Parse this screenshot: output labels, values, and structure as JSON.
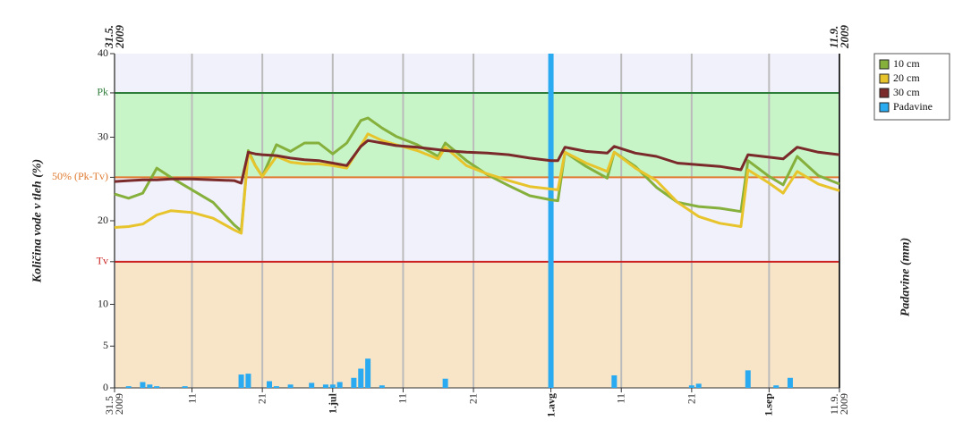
{
  "chart_data": {
    "type": "line",
    "ylabel": "Količina vode v tleh (%)",
    "y2label": "Padavine (mm)",
    "top_labels": [
      "31.5.\n2009",
      "11.9.\n2009"
    ],
    "xlim": [
      "2009-05-31",
      "2009-09-11"
    ],
    "xticks": [
      {
        "value": "2009-05-31",
        "label": "31.5\n2009"
      },
      {
        "value": "2009-06-11",
        "label": "11"
      },
      {
        "value": "2009-06-21",
        "label": "21"
      },
      {
        "value": "2009-07-01",
        "label": "1.jul",
        "bold": true
      },
      {
        "value": "2009-07-11",
        "label": "11"
      },
      {
        "value": "2009-07-21",
        "label": "21"
      },
      {
        "value": "2009-08-01",
        "label": "1.avg",
        "bold": true
      },
      {
        "value": "2009-08-11",
        "label": "11"
      },
      {
        "value": "2009-08-21",
        "label": "21"
      },
      {
        "value": "2009-09-01",
        "label": "1.sep",
        "bold": true
      },
      {
        "value": "2009-09-11",
        "label": "11.9.\n2009"
      }
    ],
    "ylim": [
      0,
      40
    ],
    "yticks": [
      0,
      5,
      10,
      {
        "value": 15.1,
        "label": "Tv",
        "color": "#cc2222"
      },
      20,
      {
        "value": 25.2,
        "label": "50% (Pk-Tv)",
        "color": "#e07a30"
      },
      30,
      {
        "value": 35.3,
        "label": "Pk",
        "color": "#2e7d3a"
      },
      40
    ],
    "y2lim": [
      0,
      40
    ],
    "bands": [
      {
        "from": 35.3,
        "to": 40,
        "color": "#f1f1fb"
      },
      {
        "from": 25.2,
        "to": 35.3,
        "color": "#c8f5c8"
      },
      {
        "from": 15.1,
        "to": 25.2,
        "color": "#f1f1fb"
      },
      {
        "from": 0,
        "to": 15.1,
        "color": "#f8e5c8"
      }
    ],
    "grid": true,
    "legend": "right",
    "x": [
      "2009-05-31",
      "2009-06-02",
      "2009-06-04",
      "2009-06-06",
      "2009-06-08",
      "2009-06-11",
      "2009-06-14",
      "2009-06-17",
      "2009-06-18",
      "2009-06-19",
      "2009-06-20",
      "2009-06-21",
      "2009-06-23",
      "2009-06-25",
      "2009-06-27",
      "2009-06-29",
      "2009-07-01",
      "2009-07-03",
      "2009-07-05",
      "2009-07-06",
      "2009-07-08",
      "2009-07-10",
      "2009-07-13",
      "2009-07-16",
      "2009-07-17",
      "2009-07-20",
      "2009-07-23",
      "2009-07-26",
      "2009-07-29",
      "2009-08-01",
      "2009-08-02",
      "2009-08-03",
      "2009-08-06",
      "2009-08-09",
      "2009-08-10",
      "2009-08-13",
      "2009-08-16",
      "2009-08-19",
      "2009-08-22",
      "2009-08-25",
      "2009-08-28",
      "2009-08-29",
      "2009-09-01",
      "2009-09-03",
      "2009-09-05",
      "2009-09-08",
      "2009-09-11"
    ],
    "series": [
      {
        "name": "10 cm",
        "color": "#86b03c",
        "values": [
          23.2,
          22.7,
          23.3,
          26.3,
          25.2,
          23.7,
          22.2,
          19.5,
          18.8,
          28.4,
          26.6,
          25.3,
          29.1,
          28.3,
          29.3,
          29.3,
          28.0,
          29.3,
          32.0,
          32.3,
          31.1,
          30.1,
          29.1,
          27.7,
          29.3,
          27.2,
          25.5,
          24.2,
          23.0,
          22.5,
          22.4,
          28.2,
          26.5,
          25.1,
          28.2,
          26.5,
          24.0,
          22.2,
          21.7,
          21.5,
          21.1,
          27.2,
          25.3,
          24.3,
          27.7,
          25.4,
          24.4
        ]
      },
      {
        "name": "20 cm",
        "color": "#e8c42c",
        "values": [
          19.2,
          19.3,
          19.6,
          20.7,
          21.2,
          21.0,
          20.3,
          18.9,
          18.5,
          28.2,
          26.6,
          25.3,
          27.7,
          27.0,
          26.8,
          26.8,
          26.6,
          26.3,
          29.0,
          30.4,
          29.6,
          29.1,
          28.4,
          27.4,
          28.8,
          26.6,
          25.6,
          24.8,
          24.1,
          23.8,
          23.7,
          28.2,
          26.9,
          25.9,
          28.2,
          26.3,
          24.8,
          22.2,
          20.5,
          19.7,
          19.3,
          26.1,
          24.5,
          23.3,
          25.9,
          24.4,
          23.6
        ]
      },
      {
        "name": "30 cm",
        "color": "#7a2a2a",
        "values": [
          24.7,
          24.8,
          24.9,
          24.9,
          25.0,
          25.0,
          24.9,
          24.8,
          24.5,
          28.2,
          28.0,
          27.9,
          27.8,
          27.5,
          27.3,
          27.2,
          26.9,
          26.6,
          28.9,
          29.6,
          29.3,
          29.0,
          28.8,
          28.5,
          28.4,
          28.2,
          28.1,
          27.9,
          27.5,
          27.2,
          27.2,
          28.8,
          28.3,
          28.1,
          28.9,
          28.1,
          27.7,
          26.9,
          26.7,
          26.5,
          26.1,
          27.9,
          27.6,
          27.4,
          28.8,
          28.2,
          27.9
        ]
      },
      {
        "name": "Padavine",
        "color": "#2aaaf0",
        "axis": "y2",
        "type": "bar",
        "x": [
          "2009-06-02",
          "2009-06-04",
          "2009-06-05",
          "2009-06-06",
          "2009-06-10",
          "2009-06-18",
          "2009-06-19",
          "2009-06-22",
          "2009-06-23",
          "2009-06-25",
          "2009-06-28",
          "2009-06-30",
          "2009-07-01",
          "2009-07-02",
          "2009-07-04",
          "2009-07-05",
          "2009-07-06",
          "2009-07-08",
          "2009-07-17",
          "2009-08-01",
          "2009-08-10",
          "2009-08-21",
          "2009-08-22",
          "2009-08-29",
          "2009-09-02",
          "2009-09-04"
        ],
        "values": [
          0.2,
          0.7,
          0.4,
          0.2,
          0.2,
          1.6,
          1.7,
          0.8,
          0.2,
          0.4,
          0.6,
          0.4,
          0.4,
          0.7,
          1.2,
          2.3,
          3.5,
          0.3,
          1.1,
          40,
          1.5,
          0.3,
          0.5,
          2.1,
          0.3,
          1.2
        ]
      }
    ]
  }
}
